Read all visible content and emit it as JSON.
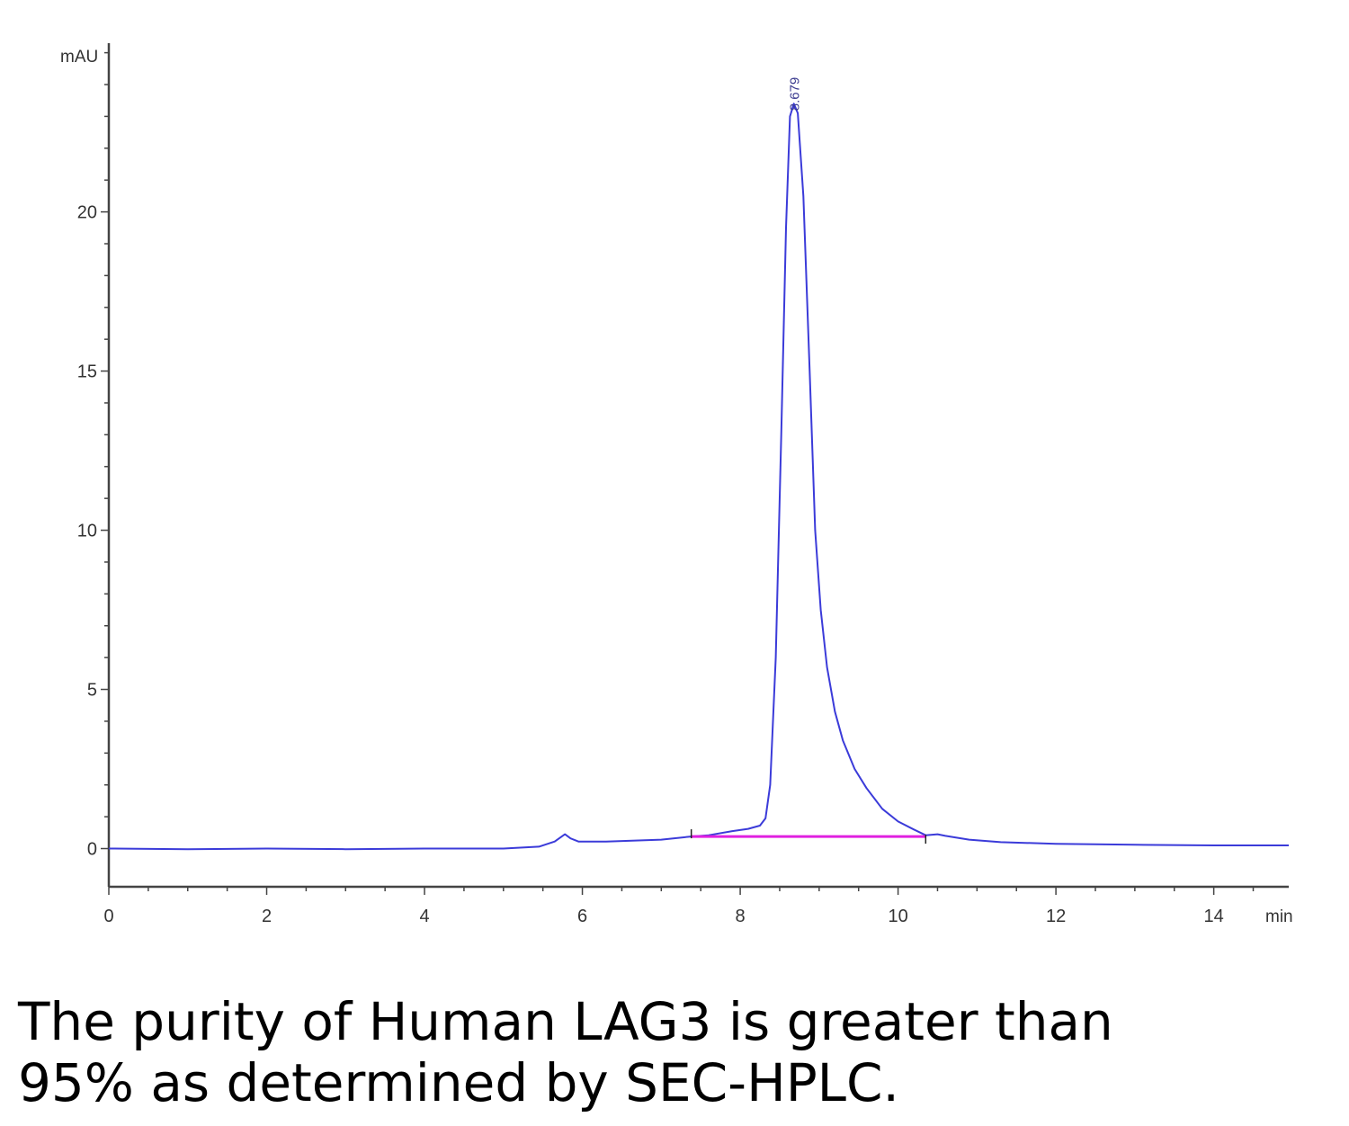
{
  "chart_data": {
    "type": "line",
    "y_unit": "mAU",
    "x_unit": "min",
    "xlim": [
      0,
      14.95
    ],
    "ylim": [
      -1.2,
      25.3
    ],
    "x_major_ticks": [
      0,
      2,
      4,
      6,
      8,
      10,
      12,
      14
    ],
    "x_tick_labels": [
      "0",
      "2",
      "4",
      "6",
      "8",
      "10",
      "12",
      "14"
    ],
    "y_major_ticks": [
      0,
      5,
      10,
      15,
      20
    ],
    "y_tick_labels": [
      "0",
      "5",
      "10",
      "15",
      "20"
    ],
    "grid": false,
    "series": [
      {
        "color": "#3b3bd9",
        "points": [
          [
            0,
            0.0
          ],
          [
            1,
            -0.02
          ],
          [
            2,
            0.0
          ],
          [
            3,
            -0.02
          ],
          [
            4,
            0.0
          ],
          [
            5,
            0.0
          ],
          [
            5.45,
            0.06
          ],
          [
            5.65,
            0.22
          ],
          [
            5.78,
            0.45
          ],
          [
            5.85,
            0.32
          ],
          [
            5.95,
            0.22
          ],
          [
            6.3,
            0.22
          ],
          [
            7.0,
            0.28
          ],
          [
            7.38,
            0.38
          ],
          [
            7.6,
            0.42
          ],
          [
            7.9,
            0.55
          ],
          [
            8.1,
            0.62
          ],
          [
            8.25,
            0.72
          ],
          [
            8.32,
            0.95
          ],
          [
            8.38,
            2.0
          ],
          [
            8.45,
            6.0
          ],
          [
            8.52,
            13.0
          ],
          [
            8.58,
            19.5
          ],
          [
            8.63,
            23.0
          ],
          [
            8.68,
            23.4
          ],
          [
            8.73,
            23.1
          ],
          [
            8.8,
            20.5
          ],
          [
            8.88,
            15.0
          ],
          [
            8.95,
            10.0
          ],
          [
            9.02,
            7.5
          ],
          [
            9.1,
            5.7
          ],
          [
            9.2,
            4.3
          ],
          [
            9.3,
            3.4
          ],
          [
            9.45,
            2.5
          ],
          [
            9.6,
            1.9
          ],
          [
            9.8,
            1.25
          ],
          [
            10.0,
            0.85
          ],
          [
            10.2,
            0.6
          ],
          [
            10.35,
            0.42
          ],
          [
            10.5,
            0.45
          ],
          [
            10.6,
            0.4
          ],
          [
            10.9,
            0.28
          ],
          [
            11.3,
            0.2
          ],
          [
            12.0,
            0.15
          ],
          [
            13.0,
            0.12
          ],
          [
            14.0,
            0.1
          ],
          [
            14.95,
            0.1
          ]
        ]
      }
    ],
    "integration_baseline": {
      "color": "#e020e0",
      "from": [
        7.38,
        0.38
      ],
      "to": [
        10.35,
        0.38
      ]
    },
    "peak_annotations": [
      {
        "x": 8.679,
        "y": 23.4,
        "label": "8.679"
      }
    ]
  },
  "caption": {
    "line1": "The purity of Human LAG3 is greater than",
    "line2": "95% as determined by SEC-HPLC."
  }
}
